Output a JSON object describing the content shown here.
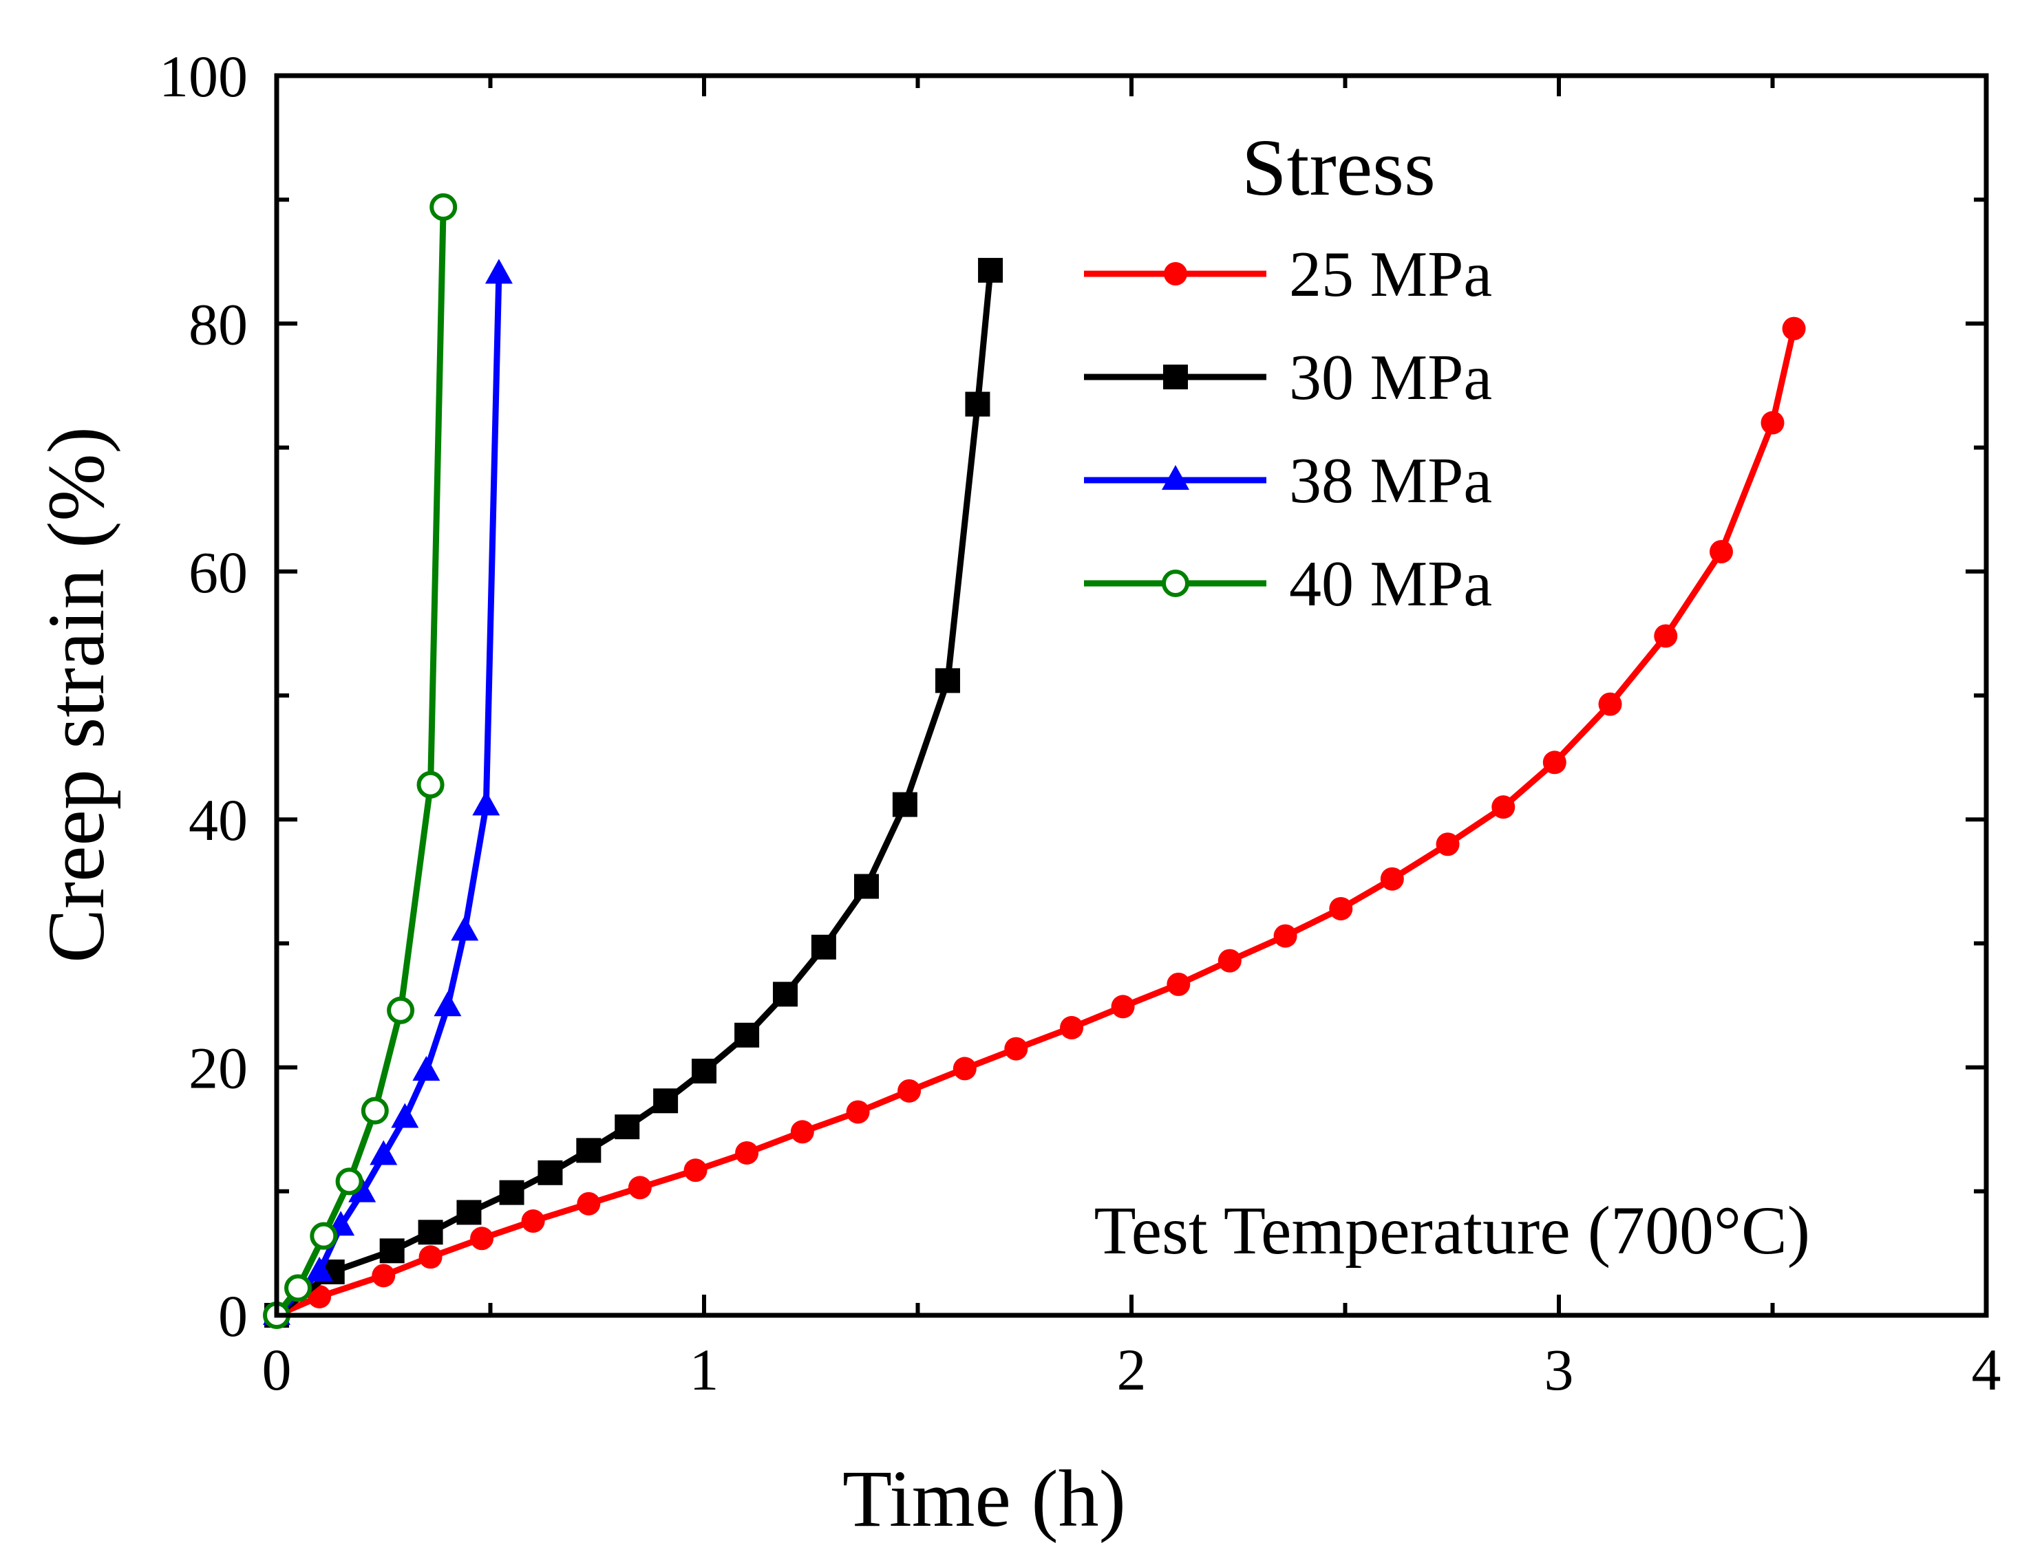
{
  "chart_data": {
    "type": "line",
    "title": "",
    "xlabel": "Time (h)",
    "ylabel": "Creep strain (%)",
    "xlim": [
      0,
      4
    ],
    "ylim": [
      0,
      100
    ],
    "xticks": [
      0,
      1,
      2,
      3,
      4
    ],
    "yticks": [
      0,
      20,
      40,
      60,
      80,
      100
    ],
    "grid": false,
    "legend": {
      "title": "Stress",
      "placement": "top-right"
    },
    "annotation": "Test Temperature (700°C)",
    "series": [
      {
        "name": "25 MPa",
        "color": "#ff0000",
        "marker": "circle",
        "x": [
          0,
          0.1,
          0.25,
          0.36,
          0.48,
          0.6,
          0.73,
          0.85,
          0.98,
          1.1,
          1.23,
          1.36,
          1.48,
          1.61,
          1.73,
          1.86,
          1.98,
          2.11,
          2.23,
          2.36,
          2.49,
          2.61,
          2.74,
          2.87,
          2.99,
          3.12,
          3.25,
          3.38,
          3.5,
          3.55
        ],
        "y": [
          0,
          1.5,
          3.2,
          4.7,
          6.2,
          7.6,
          9.0,
          10.3,
          11.7,
          13.1,
          14.8,
          16.4,
          18.1,
          19.9,
          21.5,
          23.2,
          24.9,
          26.7,
          28.6,
          30.6,
          32.8,
          35.2,
          38.0,
          41.0,
          44.6,
          49.3,
          54.8,
          61.6,
          72.0,
          79.6
        ]
      },
      {
        "name": "30 MPa",
        "color": "#000000",
        "marker": "square",
        "x": [
          0,
          0.13,
          0.27,
          0.36,
          0.45,
          0.55,
          0.64,
          0.73,
          0.82,
          0.91,
          1.0,
          1.1,
          1.19,
          1.28,
          1.38,
          1.47,
          1.57,
          1.64,
          1.67
        ],
        "y": [
          0,
          3.5,
          5.2,
          6.7,
          8.3,
          9.9,
          11.5,
          13.3,
          15.2,
          17.3,
          19.7,
          22.6,
          25.9,
          29.7,
          34.6,
          41.2,
          51.2,
          73.5,
          84.3
        ]
      },
      {
        "name": "38 MPa",
        "color": "#0000ff",
        "marker": "triangle",
        "x": [
          0,
          0.1,
          0.15,
          0.2,
          0.25,
          0.3,
          0.35,
          0.4,
          0.44,
          0.49,
          0.52
        ],
        "y": [
          0,
          3.5,
          7.2,
          9.9,
          12.9,
          15.9,
          19.7,
          24.9,
          31.0,
          41.1,
          84.0
        ]
      },
      {
        "name": "40 MPa",
        "color": "#008000",
        "marker": "open-circle",
        "x": [
          0,
          0.05,
          0.11,
          0.17,
          0.23,
          0.29,
          0.36,
          0.39
        ],
        "y": [
          0,
          2.2,
          6.4,
          10.8,
          16.5,
          24.6,
          42.8,
          89.4
        ]
      }
    ]
  }
}
